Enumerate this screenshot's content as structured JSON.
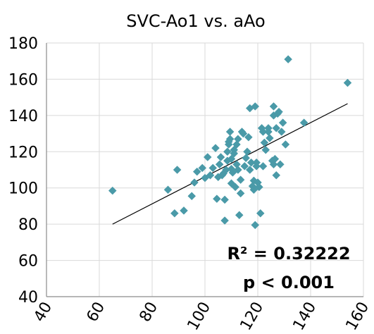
{
  "colors": {
    "background": "#ffffff",
    "marker": "#4a9aa8",
    "grid": "#d9d9d9",
    "axis": "#8c8c8c",
    "trendline": "#000000",
    "text": "#000000"
  },
  "chart_data": {
    "type": "scatter",
    "title": "SVC-Ao1 vs. aAo",
    "xlabel": "",
    "ylabel": "",
    "xlim": [
      40,
      160
    ],
    "ylim": [
      40,
      180
    ],
    "xticks": [
      40,
      60,
      80,
      100,
      120,
      140,
      160
    ],
    "yticks": [
      40,
      60,
      80,
      100,
      120,
      140,
      160,
      180
    ],
    "grid": true,
    "legend": "none",
    "series": [
      {
        "marker": "diamond",
        "points": [
          [
            65,
            98.5
          ],
          [
            86,
            99
          ],
          [
            88.5,
            86
          ],
          [
            89.5,
            110
          ],
          [
            92,
            87.5
          ],
          [
            95,
            95.5
          ],
          [
            96,
            103
          ],
          [
            97,
            109
          ],
          [
            99,
            111
          ],
          [
            100,
            105.5
          ],
          [
            101,
            117
          ],
          [
            102,
            107
          ],
          [
            103,
            111
          ],
          [
            104,
            122
          ],
          [
            104.5,
            94
          ],
          [
            105,
            106
          ],
          [
            105.5,
            113
          ],
          [
            106,
            117
          ],
          [
            106.5,
            107
          ],
          [
            107,
            108
          ],
          [
            107.5,
            82
          ],
          [
            107.5,
            93.5
          ],
          [
            108,
            110
          ],
          [
            108.5,
            115
          ],
          [
            108.5,
            120
          ],
          [
            109,
            124
          ],
          [
            109,
            125.5
          ],
          [
            109.5,
            127
          ],
          [
            109.5,
            131
          ],
          [
            110,
            116
          ],
          [
            110,
            110.5
          ],
          [
            110,
            102.5
          ],
          [
            110.5,
            108.5
          ],
          [
            111,
            119
          ],
          [
            111,
            121
          ],
          [
            111.5,
            100.5
          ],
          [
            112,
            113
          ],
          [
            112,
            124
          ],
          [
            112.5,
            127
          ],
          [
            112.5,
            110
          ],
          [
            113,
            85
          ],
          [
            113.5,
            97
          ],
          [
            113.5,
            104.5
          ],
          [
            114,
            131
          ],
          [
            114.5,
            130
          ],
          [
            115,
            112
          ],
          [
            115.5,
            116.5
          ],
          [
            116,
            120
          ],
          [
            116.5,
            128
          ],
          [
            117,
            110
          ],
          [
            117,
            144
          ],
          [
            117.5,
            114
          ],
          [
            118,
            101
          ],
          [
            118.5,
            99
          ],
          [
            118.5,
            104
          ],
          [
            119,
            145
          ],
          [
            119,
            79.5
          ],
          [
            119.5,
            112
          ],
          [
            119.5,
            114
          ],
          [
            120,
            103
          ],
          [
            120.5,
            100.5
          ],
          [
            121,
            86
          ],
          [
            121.5,
            133
          ],
          [
            122,
            131
          ],
          [
            122,
            112
          ],
          [
            122.5,
            125
          ],
          [
            123,
            121
          ],
          [
            124,
            133
          ],
          [
            124,
            131
          ],
          [
            124.5,
            127.5
          ],
          [
            125.5,
            115
          ],
          [
            126,
            145
          ],
          [
            126,
            140
          ],
          [
            126,
            113
          ],
          [
            126.5,
            116
          ],
          [
            127,
            107
          ],
          [
            127,
            133
          ],
          [
            127.5,
            141
          ],
          [
            128,
            142
          ],
          [
            128.5,
            113
          ],
          [
            129,
            131
          ],
          [
            129.5,
            136
          ],
          [
            130.5,
            124
          ],
          [
            131.5,
            171
          ],
          [
            137.5,
            136
          ],
          [
            154,
            158
          ]
        ]
      }
    ],
    "trendline": {
      "x": [
        65,
        154
      ],
      "y": [
        80,
        146.5
      ]
    },
    "annotations": [
      "R² = 0.32222",
      "p < 0.001"
    ]
  }
}
